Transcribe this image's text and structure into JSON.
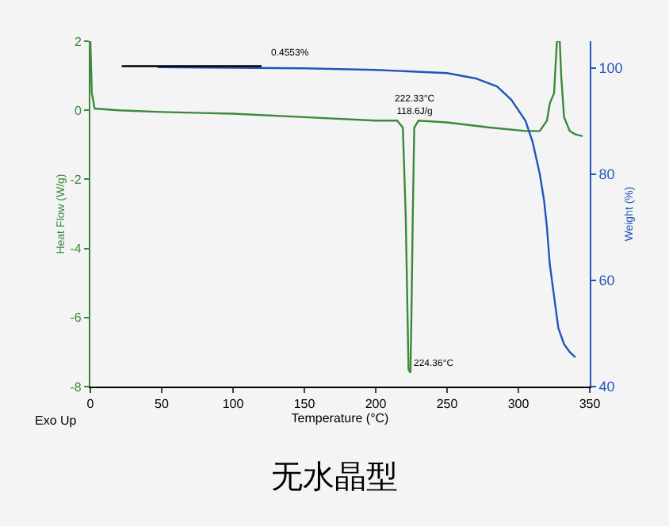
{
  "chart_data": {
    "type": "line",
    "title": "无水晶型",
    "xlabel": "Temperature (°C)",
    "ylabel": "Heat Flow (W/g)",
    "y2label": "Weight (%)",
    "xlim": [
      0,
      350
    ],
    "xticks": [
      0,
      50,
      100,
      150,
      200,
      250,
      300,
      350
    ],
    "ylim": [
      -8,
      2
    ],
    "yticks": [
      -8,
      -6,
      -4,
      -2,
      0,
      2
    ],
    "y2lim": [
      40,
      105
    ],
    "y2ticks": [
      40,
      60,
      80,
      100
    ],
    "grid": false,
    "marker": "none",
    "line_style": "solid",
    "series": [
      {
        "color": "#3a8a3a",
        "x": [
          0,
          1,
          3,
          20,
          50,
          100,
          150,
          200,
          215,
          219,
          221,
          223,
          224.36,
          225,
          226,
          227,
          230,
          250,
          280,
          305,
          315,
          320,
          322,
          325,
          327,
          329,
          330,
          332,
          336,
          340,
          345
        ],
        "values": [
          2,
          0.5,
          0.05,
          0,
          -0.05,
          -0.1,
          -0.2,
          -0.3,
          -0.3,
          -0.5,
          -3,
          -7.5,
          -7.6,
          -6,
          -3,
          -0.5,
          -0.3,
          -0.35,
          -0.5,
          -0.6,
          -0.6,
          -0.3,
          0.2,
          0.5,
          2,
          2,
          1,
          -0.2,
          -0.6,
          -0.7,
          -0.75
        ]
      },
      {
        "color": "#2255bb",
        "axis": "y2",
        "x": [
          47,
          100,
          150,
          200,
          250,
          270,
          285,
          295,
          305,
          310,
          315,
          318,
          320,
          322,
          325,
          328,
          332,
          336,
          340
        ],
        "values": [
          100.1,
          100,
          99.9,
          99.6,
          99,
          98,
          96.5,
          94,
          90,
          86,
          80,
          75,
          70,
          63,
          57,
          51,
          48,
          46.5,
          45.5
        ]
      },
      {
        "color": "#000000",
        "axis": "y2",
        "x": [
          22,
          120
        ],
        "values": [
          100.3,
          100.3
        ]
      }
    ],
    "annotations": [
      "0.4553%",
      "222.33°C\n118.6J/g",
      {
        "text": "224.36°C",
        "x": 224.36,
        "y": -7.6
      },
      "Exo Up"
    ]
  }
}
